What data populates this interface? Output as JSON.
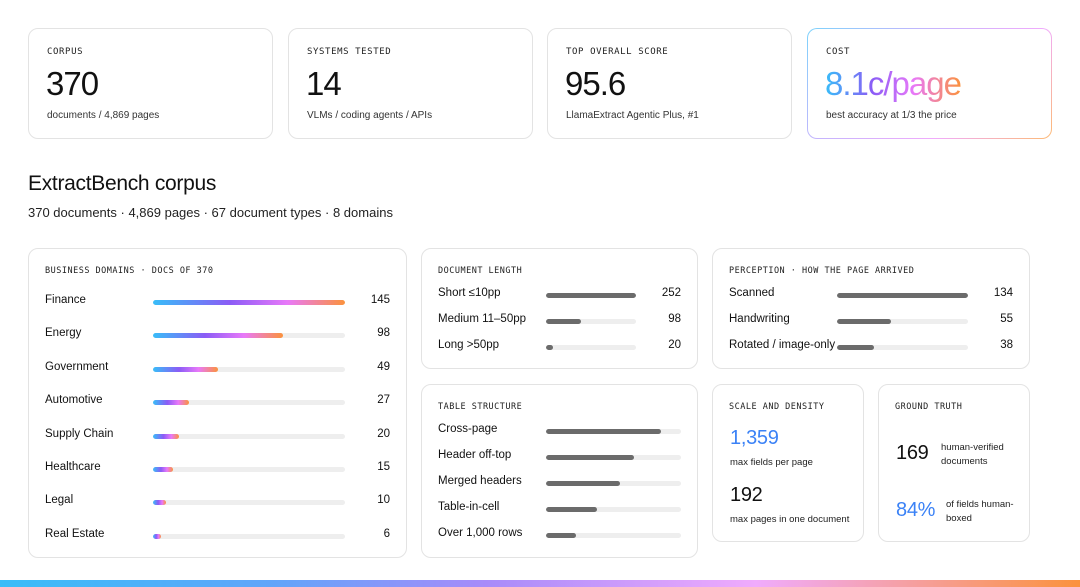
{
  "stats": [
    {
      "kicker": "CORPUS",
      "value": "370",
      "sub": "documents / 4,869 pages"
    },
    {
      "kicker": "SYSTEMS TESTED",
      "value": "14",
      "sub": "VLMs / coding agents / APIs"
    },
    {
      "kicker": "TOP OVERALL SCORE",
      "value": "95.6",
      "sub": "LlamaExtract Agentic Plus, #1"
    },
    {
      "kicker": "COST",
      "value": "8.1c/page",
      "sub": "best accuracy at 1/3 the price"
    }
  ],
  "section": {
    "title": "ExtractBench corpus",
    "subtitle": "370 documents · 4,869 pages · 67 document types · 8 domains"
  },
  "domains": {
    "title": "BUSINESS DOMAINS · DOCS OF 370",
    "max": 145,
    "items": [
      {
        "label": "Finance",
        "value": 145
      },
      {
        "label": "Energy",
        "value": 98
      },
      {
        "label": "Government",
        "value": 49
      },
      {
        "label": "Automotive",
        "value": 27
      },
      {
        "label": "Supply Chain",
        "value": 20
      },
      {
        "label": "Healthcare",
        "value": 15
      },
      {
        "label": "Legal",
        "value": 10
      },
      {
        "label": "Real Estate",
        "value": 6
      }
    ]
  },
  "length": {
    "title": "DOCUMENT LENGTH",
    "max": 252,
    "items": [
      {
        "label": "Short ≤10pp",
        "value": 252
      },
      {
        "label": "Medium 11–50pp",
        "value": 98
      },
      {
        "label": "Long >50pp",
        "value": 20
      }
    ]
  },
  "perception": {
    "title": "PERCEPTION · HOW THE PAGE ARRIVED",
    "max": 134,
    "items": [
      {
        "label": "Scanned",
        "value": 134
      },
      {
        "label": "Handwriting",
        "value": 55
      },
      {
        "label": "Rotated / image-only",
        "value": 38
      }
    ]
  },
  "tables": {
    "title": "TABLE STRUCTURE",
    "items": [
      {
        "label": "Cross-page",
        "fraction": 0.85
      },
      {
        "label": "Header off-top",
        "fraction": 0.65
      },
      {
        "label": "Merged headers",
        "fraction": 0.55
      },
      {
        "label": "Table-in-cell",
        "fraction": 0.38
      },
      {
        "label": "Over 1,000 rows",
        "fraction": 0.22
      }
    ]
  },
  "scale": {
    "title": "SCALE AND DENSITY",
    "fields_value": "1,359",
    "fields_label": "max fields per page",
    "pages_value": "192",
    "pages_label": "max pages in one document"
  },
  "ground_truth": {
    "title": "GROUND TRUTH",
    "docs_value": "169",
    "docs_label_1": "human-verified",
    "docs_label_2": "documents",
    "pct_value": "84%",
    "pct_label_1": "of fields human-",
    "pct_label_2": "boxed"
  },
  "colors": {
    "accent_blue": "#3b82f6",
    "bar_grey": "#6b6b6b",
    "gradient": [
      "#38bdf8",
      "#8b5cf6",
      "#e879f9",
      "#fb923c"
    ]
  }
}
